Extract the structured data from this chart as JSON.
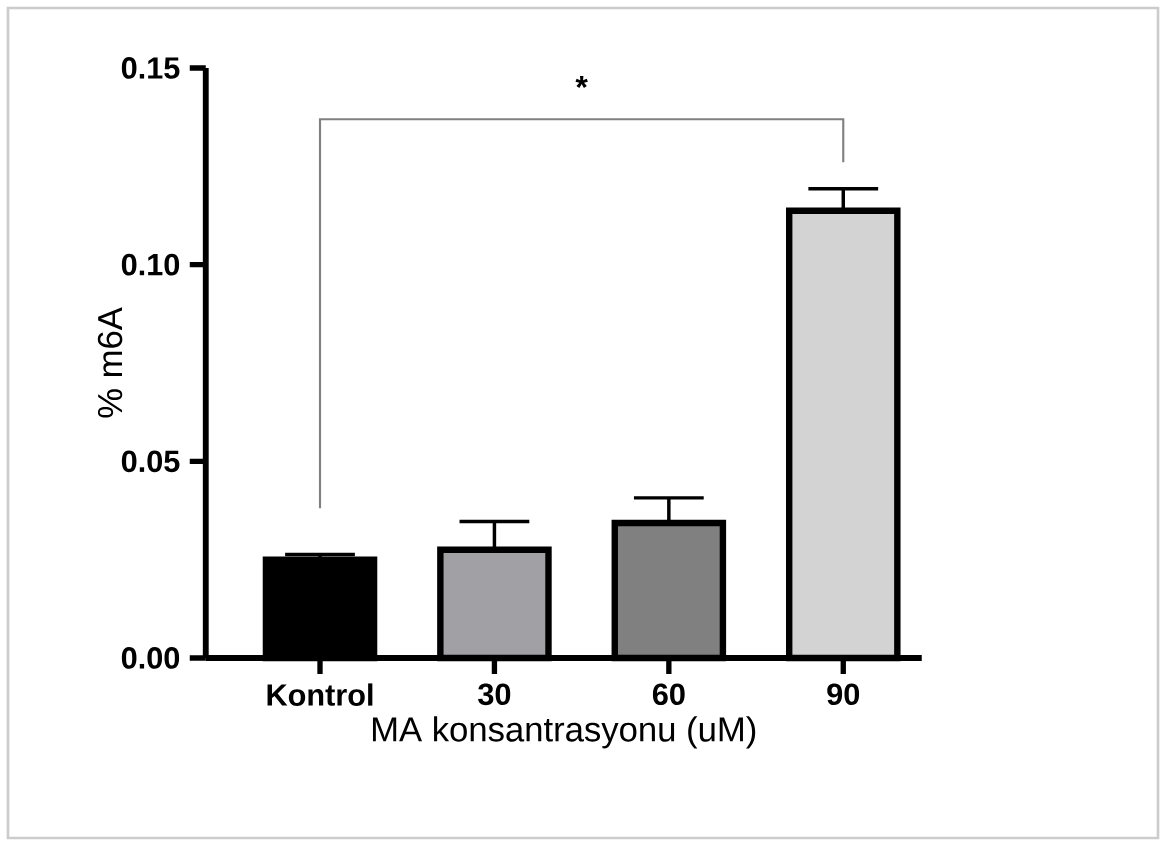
{
  "chart_data": {
    "type": "bar",
    "xlabel": "MA konsantrasyonu (uM)",
    "ylabel": "% m6A",
    "categories": [
      "Kontrol",
      "30",
      "60",
      "90"
    ],
    "values": [
      0.025,
      0.0275,
      0.0343,
      0.1137
    ],
    "errors": [
      [
        0.025,
        0.0263
      ],
      [
        0.0275,
        0.0347
      ],
      [
        0.0343,
        0.0407
      ],
      [
        0.1137,
        0.1193
      ]
    ],
    "colors": [
      "#000000",
      "#a0a0a5",
      "#808080",
      "#d3d3d3"
    ],
    "ylim": [
      0,
      0.15
    ],
    "yticks": [
      {
        "value": 0,
        "label": "0.00"
      },
      {
        "value": 0.05,
        "label": "0.05"
      },
      {
        "value": 0.1,
        "label": "0.10"
      },
      {
        "value": 0.15,
        "label": "0.15"
      }
    ],
    "annotations": [
      "*"
    ],
    "grid": false
  }
}
